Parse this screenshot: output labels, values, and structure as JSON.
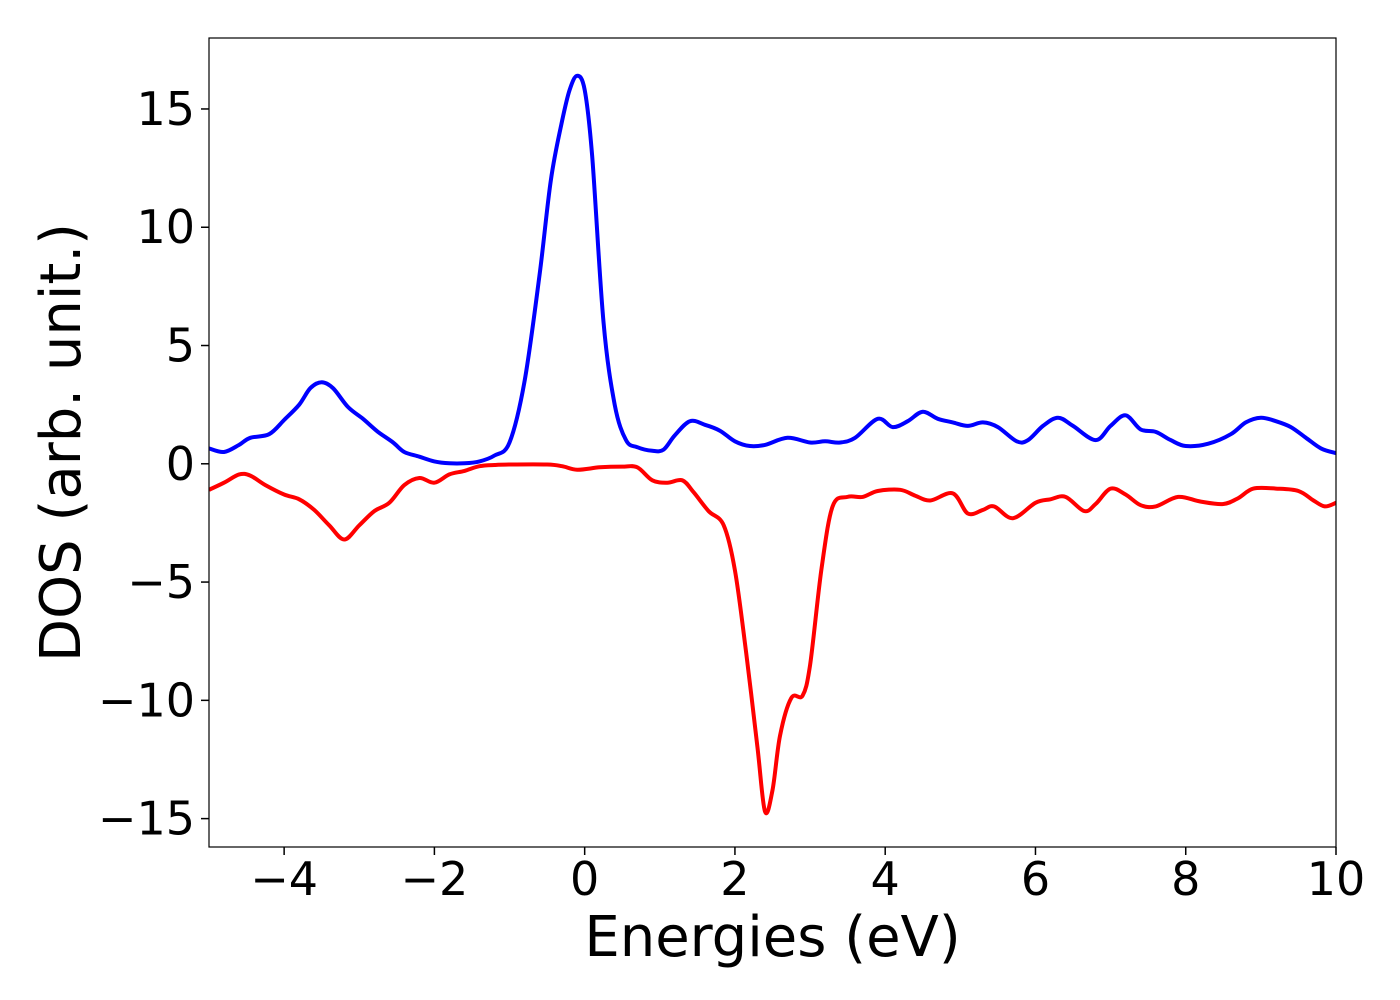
{
  "chart_data": {
    "type": "line",
    "title": "",
    "xlabel": "Energies (eV)",
    "ylabel": "DOS (arb. unit.)",
    "xlim": [
      -5,
      10
    ],
    "ylim": [
      -16.2,
      18.0
    ],
    "x_ticks": [
      {
        "value": -4,
        "label": "−4"
      },
      {
        "value": -2,
        "label": "−2"
      },
      {
        "value": 0,
        "label": "0"
      },
      {
        "value": 2,
        "label": "2"
      },
      {
        "value": 4,
        "label": "4"
      },
      {
        "value": 6,
        "label": "6"
      },
      {
        "value": 8,
        "label": "8"
      },
      {
        "value": 10,
        "label": "10"
      }
    ],
    "y_ticks": [
      {
        "value": -15,
        "label": "−15"
      },
      {
        "value": -10,
        "label": "−10"
      },
      {
        "value": -5,
        "label": "−5"
      },
      {
        "value": 0,
        "label": "0"
      },
      {
        "value": 5,
        "label": "5"
      },
      {
        "value": 10,
        "label": "10"
      },
      {
        "value": 15,
        "label": "15"
      }
    ],
    "grid": false,
    "legend": "none",
    "series": [
      {
        "color": "#0000ff",
        "points": [
          [
            -5.0,
            0.65
          ],
          [
            -4.8,
            0.5
          ],
          [
            -4.6,
            0.8
          ],
          [
            -4.45,
            1.1
          ],
          [
            -4.2,
            1.25
          ],
          [
            -4.0,
            1.85
          ],
          [
            -3.8,
            2.5
          ],
          [
            -3.65,
            3.2
          ],
          [
            -3.5,
            3.45
          ],
          [
            -3.35,
            3.2
          ],
          [
            -3.15,
            2.4
          ],
          [
            -2.95,
            1.9
          ],
          [
            -2.75,
            1.35
          ],
          [
            -2.55,
            0.9
          ],
          [
            -2.4,
            0.5
          ],
          [
            -2.2,
            0.3
          ],
          [
            -2.0,
            0.1
          ],
          [
            -1.8,
            0.02
          ],
          [
            -1.6,
            0.02
          ],
          [
            -1.4,
            0.1
          ],
          [
            -1.2,
            0.35
          ],
          [
            -1.0,
            0.9
          ],
          [
            -0.8,
            3.5
          ],
          [
            -0.6,
            8.0
          ],
          [
            -0.45,
            12.0
          ],
          [
            -0.3,
            14.5
          ],
          [
            -0.2,
            15.8
          ],
          [
            -0.1,
            16.4
          ],
          [
            0.0,
            15.8
          ],
          [
            0.1,
            13.0
          ],
          [
            0.25,
            6.0
          ],
          [
            0.4,
            2.5
          ],
          [
            0.55,
            1.0
          ],
          [
            0.7,
            0.7
          ],
          [
            0.9,
            0.55
          ],
          [
            1.05,
            0.6
          ],
          [
            1.2,
            1.2
          ],
          [
            1.4,
            1.8
          ],
          [
            1.6,
            1.65
          ],
          [
            1.8,
            1.4
          ],
          [
            2.0,
            0.95
          ],
          [
            2.2,
            0.75
          ],
          [
            2.4,
            0.8
          ],
          [
            2.7,
            1.1
          ],
          [
            3.0,
            0.9
          ],
          [
            3.2,
            0.95
          ],
          [
            3.4,
            0.9
          ],
          [
            3.6,
            1.1
          ],
          [
            3.9,
            1.9
          ],
          [
            4.1,
            1.55
          ],
          [
            4.3,
            1.8
          ],
          [
            4.5,
            2.2
          ],
          [
            4.7,
            1.9
          ],
          [
            4.9,
            1.75
          ],
          [
            5.1,
            1.6
          ],
          [
            5.3,
            1.75
          ],
          [
            5.5,
            1.55
          ],
          [
            5.75,
            0.95
          ],
          [
            5.9,
            1.0
          ],
          [
            6.1,
            1.6
          ],
          [
            6.3,
            1.95
          ],
          [
            6.5,
            1.6
          ],
          [
            6.8,
            1.0
          ],
          [
            7.0,
            1.6
          ],
          [
            7.2,
            2.05
          ],
          [
            7.4,
            1.45
          ],
          [
            7.6,
            1.35
          ],
          [
            7.8,
            1.0
          ],
          [
            8.0,
            0.75
          ],
          [
            8.3,
            0.85
          ],
          [
            8.6,
            1.25
          ],
          [
            8.8,
            1.75
          ],
          [
            9.0,
            1.95
          ],
          [
            9.2,
            1.8
          ],
          [
            9.4,
            1.55
          ],
          [
            9.6,
            1.1
          ],
          [
            9.8,
            0.65
          ],
          [
            10.0,
            0.45
          ]
        ]
      },
      {
        "color": "#ff0000",
        "points": [
          [
            -5.0,
            -1.1
          ],
          [
            -4.8,
            -0.8
          ],
          [
            -4.6,
            -0.45
          ],
          [
            -4.45,
            -0.5
          ],
          [
            -4.25,
            -0.9
          ],
          [
            -4.0,
            -1.3
          ],
          [
            -3.8,
            -1.5
          ],
          [
            -3.6,
            -1.95
          ],
          [
            -3.4,
            -2.6
          ],
          [
            -3.2,
            -3.2
          ],
          [
            -3.0,
            -2.6
          ],
          [
            -2.8,
            -2.0
          ],
          [
            -2.6,
            -1.65
          ],
          [
            -2.4,
            -0.9
          ],
          [
            -2.2,
            -0.6
          ],
          [
            -2.0,
            -0.8
          ],
          [
            -1.8,
            -0.45
          ],
          [
            -1.6,
            -0.3
          ],
          [
            -1.4,
            -0.1
          ],
          [
            -1.2,
            -0.05
          ],
          [
            -1.0,
            -0.03
          ],
          [
            -0.5,
            -0.03
          ],
          [
            -0.3,
            -0.1
          ],
          [
            -0.1,
            -0.25
          ],
          [
            0.2,
            -0.15
          ],
          [
            0.5,
            -0.12
          ],
          [
            0.7,
            -0.15
          ],
          [
            0.9,
            -0.7
          ],
          [
            1.1,
            -0.8
          ],
          [
            1.3,
            -0.7
          ],
          [
            1.45,
            -1.2
          ],
          [
            1.65,
            -2.0
          ],
          [
            1.85,
            -2.6
          ],
          [
            2.0,
            -4.5
          ],
          [
            2.15,
            -8.0
          ],
          [
            2.3,
            -12.0
          ],
          [
            2.4,
            -14.7
          ],
          [
            2.5,
            -13.8
          ],
          [
            2.6,
            -11.5
          ],
          [
            2.75,
            -9.9
          ],
          [
            2.9,
            -9.8
          ],
          [
            3.0,
            -8.5
          ],
          [
            3.15,
            -4.5
          ],
          [
            3.3,
            -1.8
          ],
          [
            3.5,
            -1.4
          ],
          [
            3.7,
            -1.4
          ],
          [
            3.9,
            -1.15
          ],
          [
            4.2,
            -1.1
          ],
          [
            4.4,
            -1.35
          ],
          [
            4.6,
            -1.55
          ],
          [
            4.9,
            -1.25
          ],
          [
            5.1,
            -2.1
          ],
          [
            5.3,
            -1.95
          ],
          [
            5.45,
            -1.8
          ],
          [
            5.7,
            -2.3
          ],
          [
            6.0,
            -1.65
          ],
          [
            6.2,
            -1.5
          ],
          [
            6.4,
            -1.4
          ],
          [
            6.65,
            -2.0
          ],
          [
            6.8,
            -1.7
          ],
          [
            7.0,
            -1.05
          ],
          [
            7.2,
            -1.3
          ],
          [
            7.4,
            -1.75
          ],
          [
            7.6,
            -1.8
          ],
          [
            7.9,
            -1.4
          ],
          [
            8.2,
            -1.6
          ],
          [
            8.5,
            -1.7
          ],
          [
            8.7,
            -1.45
          ],
          [
            8.9,
            -1.05
          ],
          [
            9.2,
            -1.05
          ],
          [
            9.5,
            -1.15
          ],
          [
            9.7,
            -1.55
          ],
          [
            9.85,
            -1.8
          ],
          [
            10.0,
            -1.65
          ]
        ]
      }
    ]
  }
}
